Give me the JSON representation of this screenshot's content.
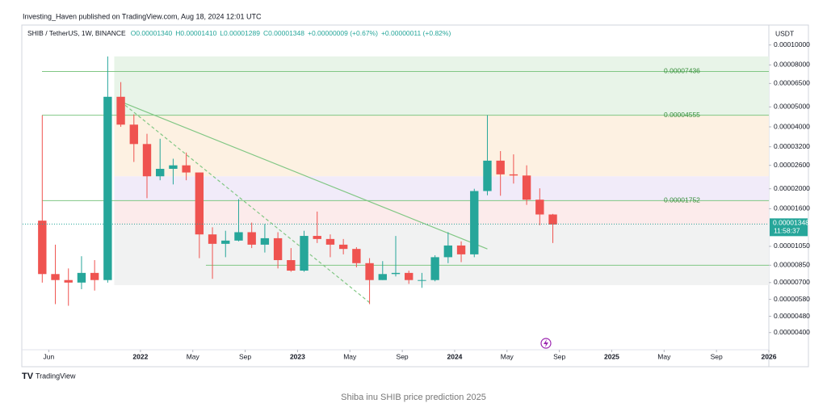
{
  "header": {
    "publisher": "Investing_Haven published on TradingView.com, Aug 18, 2024 12:01 UTC"
  },
  "legend": {
    "symbol": "SHIB / TetherUS, 1W, BINANCE",
    "open": "O0.00001340",
    "high": "H0.00001410",
    "low": "L0.00001289",
    "close": "C0.00001348",
    "change": "+0.00000009 (+0.67%)",
    "change2": "+0.00000011 (+0.82%)"
  },
  "footer": {
    "brand": "TradingView",
    "caption": "Shiba inu SHIB price prediction 2025"
  },
  "chart_data": {
    "type": "candlestick",
    "currency": "USDT",
    "log_scale": true,
    "up_color": "#26a69a",
    "down_color": "#ef5350",
    "x": [
      "2021-05",
      "2021-06",
      "2021-07",
      "2021-08",
      "2021-09",
      "2021-10",
      "2021-11",
      "2021-12",
      "2022-01",
      "2022-02",
      "2022-03",
      "2022-04",
      "2022-05",
      "2022-06",
      "2022-07",
      "2022-08",
      "2022-09",
      "2022-10",
      "2022-11",
      "2022-12",
      "2023-01",
      "2023-02",
      "2023-03",
      "2023-04",
      "2023-05",
      "2023-06",
      "2023-07",
      "2023-08",
      "2023-09",
      "2023-10",
      "2023-11",
      "2023-12",
      "2024-01",
      "2024-02",
      "2024-03",
      "2024-04",
      "2024-05",
      "2024-06",
      "2024-07",
      "2024-08"
    ],
    "open": [
      1.4e-05,
      7.7e-06,
      7.2e-06,
      7e-06,
      7.8e-06,
      7.2e-06,
      5.6e-05,
      4.1e-05,
      3.3e-05,
      2.3e-05,
      2.5e-05,
      2.6e-05,
      2.4e-05,
      1.2e-05,
      1.08e-05,
      1.12e-05,
      1.23e-05,
      1.07e-05,
      1.15e-05,
      9e-06,
      8e-06,
      1.18e-05,
      1.14e-05,
      1.07e-05,
      1.02e-05,
      8.7e-06,
      7.2e-06,
      7.7e-06,
      7.8e-06,
      7.2e-06,
      7.2e-06,
      9.3e-06,
      1.06e-05,
      9.6e-06,
      1.95e-05,
      2.74e-05,
      2.35e-05,
      2.32e-05,
      1.77e-05,
      1.5e-05
    ],
    "high": [
      4.55e-05,
      1.07e-05,
      8.2e-06,
      9.4e-06,
      9e-06,
      8.8e-05,
      6.6e-05,
      4.6e-05,
      3.7e-05,
      3.5e-05,
      2.8e-05,
      3e-05,
      2.4e-05,
      1.3e-05,
      1.25e-05,
      1.78e-05,
      1.37e-05,
      1.35e-05,
      1.23e-05,
      1.03e-05,
      1.25e-05,
      1.55e-05,
      1.2e-05,
      1.14e-05,
      1.04e-05,
      9.2e-06,
      8.9e-06,
      1.18e-05,
      8e-06,
      7.8e-06,
      9.5e-06,
      1.23e-05,
      1.11e-05,
      2e-05,
      4.56e-05,
      3.05e-05,
      2.94e-05,
      2.6e-05,
      2.01e-05,
      1.51e-05
    ],
    "low": [
      7e-06,
      5.5e-06,
      5.4e-06,
      6.5e-06,
      6.4e-06,
      7e-06,
      4e-05,
      2.7e-05,
      1.8e-05,
      2.2e-05,
      2.1e-05,
      2.2e-05,
      9.2e-06,
      7.3e-06,
      9.3e-06,
      1.11e-05,
      1.03e-05,
      9.8e-06,
      8.2e-06,
      7.9e-06,
      7.9e-06,
      1.09e-05,
      9.3e-06,
      9.6e-06,
      8.3e-06,
      5.5e-06,
      7.2e-06,
      7.5e-06,
      6.9e-06,
      6.6e-06,
      7.1e-06,
      8.7e-06,
      8.8e-06,
      9.3e-06,
      1.86e-05,
      1.85e-05,
      2.12e-05,
      1.67e-05,
      1.33e-05,
      1.09e-05
    ],
    "close": [
      7.7e-06,
      7.2e-06,
      7e-06,
      7.8e-06,
      7.2e-06,
      5.6e-05,
      4.1e-05,
      3.3e-05,
      2.3e-05,
      2.5e-05,
      2.6e-05,
      2.4e-05,
      1.2e-05,
      1.08e-05,
      1.12e-05,
      1.23e-05,
      1.07e-05,
      1.15e-05,
      9e-06,
      8e-06,
      1.18e-05,
      1.14e-05,
      1.07e-05,
      1.02e-05,
      8.7e-06,
      7.2e-06,
      7.7e-06,
      7.8e-06,
      7.2e-06,
      7.2e-06,
      9.3e-06,
      1.06e-05,
      9.6e-06,
      1.95e-05,
      2.74e-05,
      2.35e-05,
      2.32e-05,
      1.77e-05,
      1.5e-05,
      1.34e-05
    ],
    "xlim": [
      "2021-04",
      "2026-01"
    ],
    "xticks": [
      {
        "value": "2021-06",
        "label": "Jun"
      },
      {
        "value": "2022-01",
        "label": "2022"
      },
      {
        "value": "2022-05",
        "label": "May"
      },
      {
        "value": "2022-09",
        "label": "Sep"
      },
      {
        "value": "2023-01",
        "label": "2023"
      },
      {
        "value": "2023-05",
        "label": "May"
      },
      {
        "value": "2023-09",
        "label": "Sep"
      },
      {
        "value": "2024-01",
        "label": "2024"
      },
      {
        "value": "2024-05",
        "label": "May"
      },
      {
        "value": "2024-09",
        "label": "Sep"
      },
      {
        "value": "2025-01",
        "label": "2025"
      },
      {
        "value": "2025-05",
        "label": "May"
      },
      {
        "value": "2025-09",
        "label": "Sep"
      },
      {
        "value": "2026-01",
        "label": "2026"
      }
    ],
    "ylim": [
      3.3e-06,
      0.000125
    ],
    "yticks": [
      {
        "value": 0.0001,
        "label": "0.00010000"
      },
      {
        "value": 8e-05,
        "label": "0.00008000"
      },
      {
        "value": 6.5e-05,
        "label": "0.00006500"
      },
      {
        "value": 5e-05,
        "label": "0.00005000"
      },
      {
        "value": 4e-05,
        "label": "0.00004000"
      },
      {
        "value": 3.2e-05,
        "label": "0.00003200"
      },
      {
        "value": 2.6e-05,
        "label": "0.00002600"
      },
      {
        "value": 2e-05,
        "label": "0.00002000"
      },
      {
        "value": 1.6e-05,
        "label": "0.00001600"
      },
      {
        "value": 1.05e-05,
        "label": "0.00001050"
      },
      {
        "value": 8.5e-06,
        "label": "0.00000850"
      },
      {
        "value": 7e-06,
        "label": "0.00000700"
      },
      {
        "value": 5.8e-06,
        "label": "0.00000580"
      },
      {
        "value": 4.8e-06,
        "label": "0.00000480"
      },
      {
        "value": 4e-06,
        "label": "0.00000400"
      }
    ],
    "last_price": 1.348e-05,
    "countdown": "11:58:37",
    "zones_start": "2021-11",
    "zones": [
      {
        "lo": 4.55e-05,
        "hi": 8.8e-05,
        "color": "#e8f4e8"
      },
      {
        "lo": 2.3e-05,
        "hi": 4.55e-05,
        "color": "#fdf1e2"
      },
      {
        "lo": 1.75e-05,
        "hi": 2.3e-05,
        "color": "#f1ebf9"
      },
      {
        "lo": 1.34e-05,
        "hi": 1.75e-05,
        "color": "#fcebeb"
      },
      {
        "lo": 6.8e-06,
        "hi": 1.34e-05,
        "color": "#f1f2f2"
      }
    ],
    "levels": [
      7.436e-05,
      4.555e-05,
      1.752e-05
    ],
    "hlines": [
      8.5e-06
    ],
    "trendlines": [
      {
        "x": [
          "2021-11",
          "2024-03"
        ],
        "y": [
          5.3e-05,
          1.02e-05
        ],
        "style": "solid"
      },
      {
        "x": [
          "2021-11",
          "2023-06"
        ],
        "y": [
          5.3e-05,
          5.6e-06
        ],
        "style": "dashed"
      }
    ],
    "line_color": "#81c784"
  }
}
